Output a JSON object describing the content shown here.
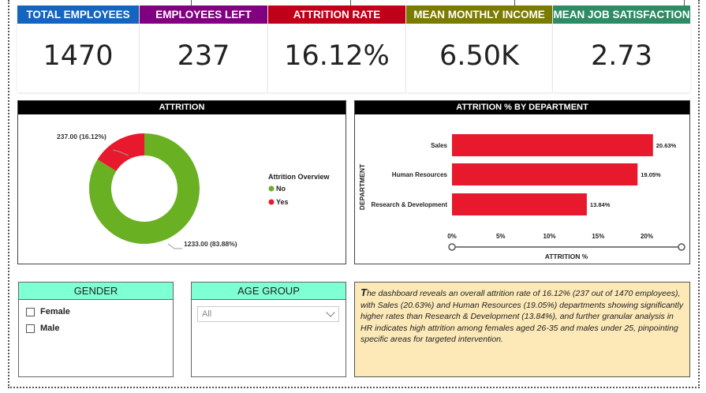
{
  "kpis": [
    {
      "label": "TOTAL EMPLOYEES",
      "value": "1470",
      "color": "#1565c0"
    },
    {
      "label": "EMPLOYEES LEFT",
      "value": "237",
      "color": "#800080"
    },
    {
      "label": "ATTRITION RATE",
      "value": "16.12%",
      "color": "#c00018"
    },
    {
      "label": "MEAN MONTHLY INCOME",
      "value": "6.50K",
      "color": "#7b7b00"
    },
    {
      "label": "MEAN JOB SATISFACTION",
      "value": "2.73",
      "color": "#2e8b64"
    }
  ],
  "attrition_chart": {
    "title": "ATTRITION",
    "legend_title": "Attrition Overview",
    "label_yes": "237.00 (16.12%)",
    "label_no": "1233.00 (83.88%)"
  },
  "department_chart": {
    "title": "ATTRITION % BY DEPARTMENT",
    "ylabel": "DEPARTMENT",
    "xlabel": "ATTRITION %",
    "value_labels": [
      "20.63%",
      "19.05%",
      "13.84%"
    ],
    "tick_labels": [
      "0%",
      "5%",
      "10%",
      "15%",
      "20%"
    ]
  },
  "gender_slicer": {
    "title": "GENDER",
    "options": [
      "Female",
      "Male"
    ]
  },
  "age_slicer": {
    "title": "AGE GROUP",
    "selected": "All"
  },
  "summary": {
    "first_letter": "T",
    "text": "he dashboard reveals an overall attrition rate of 16.12% (237 out of 1470 employees), with Sales (20.63%) and Human Resources (19.05%) departments showing significantly higher rates than Research & Development (13.84%), and further granular analysis in HR indicates high attrition among females aged 26-35 and males under 25, pinpointing specific areas for targeted intervention."
  },
  "chart_data": [
    {
      "type": "pie",
      "title": "ATTRITION",
      "categories": [
        "No",
        "Yes"
      ],
      "values": [
        1233,
        237
      ],
      "percentages": [
        83.88,
        16.12
      ],
      "colors": [
        "#6ab023",
        "#e8192c"
      ],
      "legend": "right"
    },
    {
      "type": "bar",
      "orientation": "horizontal",
      "title": "ATTRITION % BY DEPARTMENT",
      "categories": [
        "Sales",
        "Human Resources",
        "Research & Development"
      ],
      "values": [
        20.63,
        19.05,
        13.84
      ],
      "xlabel": "ATTRITION %",
      "ylabel": "DEPARTMENT",
      "xlim": [
        0,
        22
      ],
      "xticks": [
        0,
        5,
        10,
        15,
        20
      ],
      "color": "#e8192c"
    }
  ]
}
